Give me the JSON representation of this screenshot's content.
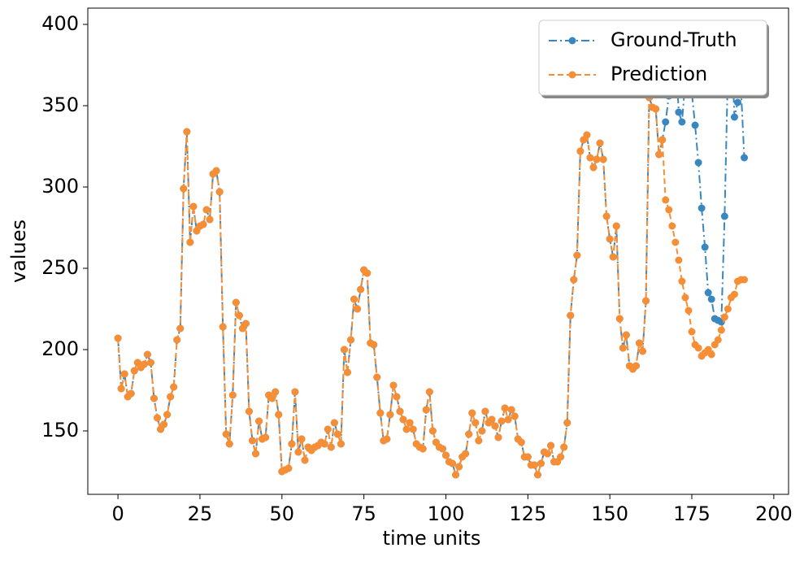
{
  "chart_data": {
    "type": "line",
    "xlabel": "time units",
    "ylabel": "values",
    "x": [
      0,
      1,
      2,
      3,
      4,
      5,
      6,
      7,
      8,
      9,
      10,
      11,
      12,
      13,
      14,
      15,
      16,
      17,
      18,
      19,
      20,
      21,
      22,
      23,
      24,
      25,
      26,
      27,
      28,
      29,
      30,
      31,
      32,
      33,
      34,
      35,
      36,
      37,
      38,
      39,
      40,
      41,
      42,
      43,
      44,
      45,
      46,
      47,
      48,
      49,
      50,
      51,
      52,
      53,
      54,
      55,
      56,
      57,
      58,
      59,
      60,
      61,
      62,
      63,
      64,
      65,
      66,
      67,
      68,
      69,
      70,
      71,
      72,
      73,
      74,
      75,
      76,
      77,
      78,
      79,
      80,
      81,
      82,
      83,
      84,
      85,
      86,
      87,
      88,
      89,
      90,
      91,
      92,
      93,
      94,
      95,
      96,
      97,
      98,
      99,
      100,
      101,
      102,
      103,
      104,
      105,
      106,
      107,
      108,
      109,
      110,
      111,
      112,
      113,
      114,
      115,
      116,
      117,
      118,
      119,
      120,
      121,
      122,
      123,
      124,
      125,
      126,
      127,
      128,
      129,
      130,
      131,
      132,
      133,
      134,
      135,
      136,
      137,
      138,
      139,
      140,
      141,
      142,
      143,
      144,
      145,
      146,
      147,
      148,
      149,
      150,
      151,
      152,
      153,
      154,
      155,
      156,
      157,
      158,
      159,
      160,
      161,
      162,
      163,
      164,
      165,
      166,
      167,
      168,
      169,
      170,
      171,
      172,
      173,
      174,
      175,
      176,
      177,
      178,
      179,
      180,
      181,
      182,
      183,
      184,
      185,
      186,
      187,
      188,
      189,
      190,
      191
    ],
    "series": [
      {
        "name": "Ground-Truth",
        "color": "#3a87c0",
        "style": "dashdot",
        "values": [
          207,
          176,
          185,
          171,
          173,
          187,
          192,
          189,
          191,
          197,
          192,
          170,
          158,
          151,
          154,
          160,
          171,
          177,
          206,
          213,
          299,
          334,
          266,
          288,
          273,
          276,
          277,
          286,
          280,
          308,
          310,
          297,
          214,
          148,
          142,
          172,
          229,
          221,
          213,
          216,
          162,
          144,
          136,
          156,
          145,
          146,
          172,
          170,
          174,
          160,
          125,
          126,
          127,
          142,
          174,
          137,
          145,
          132,
          140,
          138,
          140,
          141,
          143,
          142,
          151,
          140,
          155,
          148,
          142,
          200,
          186,
          206,
          231,
          225,
          237,
          249,
          247,
          204,
          203,
          183,
          161,
          144,
          145,
          160,
          178,
          171,
          162,
          157,
          151,
          155,
          151,
          142,
          140,
          139,
          163,
          174,
          150,
          143,
          140,
          139,
          135,
          131,
          130,
          123,
          128,
          134,
          136,
          148,
          161,
          155,
          144,
          150,
          162,
          155,
          157,
          153,
          146,
          156,
          164,
          157,
          163,
          159,
          145,
          143,
          134,
          134,
          129,
          129,
          123,
          130,
          137,
          136,
          141,
          131,
          131,
          134,
          140,
          155,
          221,
          243,
          258,
          322,
          329,
          332,
          318,
          312,
          317,
          327,
          317,
          282,
          268,
          257,
          276,
          219,
          201,
          209,
          190,
          188,
          190,
          204,
          199,
          230,
          355,
          349,
          348,
          320,
          329,
          340,
          356,
          372,
          385,
          346,
          340,
          365,
          380,
          358,
          338,
          315,
          287,
          263,
          235,
          231,
          219,
          218,
          217,
          282,
          372,
          395,
          343,
          352,
          360,
          318
        ]
      },
      {
        "name": "Prediction",
        "color": "#f58e35",
        "style": "dashed",
        "values": [
          207,
          176,
          185,
          171,
          173,
          187,
          192,
          189,
          191,
          197,
          192,
          170,
          158,
          151,
          154,
          160,
          171,
          177,
          206,
          213,
          299,
          334,
          266,
          288,
          273,
          276,
          277,
          286,
          280,
          308,
          310,
          297,
          214,
          148,
          142,
          172,
          229,
          221,
          213,
          216,
          162,
          144,
          136,
          156,
          145,
          146,
          172,
          170,
          174,
          160,
          125,
          126,
          127,
          142,
          174,
          137,
          145,
          132,
          140,
          138,
          140,
          141,
          143,
          142,
          151,
          140,
          155,
          148,
          142,
          200,
          186,
          206,
          231,
          225,
          237,
          249,
          247,
          204,
          203,
          183,
          161,
          144,
          145,
          160,
          178,
          171,
          162,
          157,
          151,
          155,
          151,
          142,
          140,
          139,
          163,
          174,
          150,
          143,
          140,
          139,
          135,
          131,
          130,
          123,
          128,
          134,
          136,
          148,
          161,
          155,
          144,
          150,
          162,
          155,
          157,
          153,
          146,
          156,
          164,
          157,
          163,
          159,
          145,
          143,
          134,
          134,
          129,
          129,
          123,
          130,
          137,
          136,
          141,
          131,
          131,
          134,
          140,
          155,
          221,
          243,
          258,
          322,
          329,
          332,
          318,
          312,
          317,
          327,
          317,
          282,
          268,
          257,
          276,
          219,
          201,
          209,
          190,
          188,
          190,
          204,
          199,
          230,
          355,
          349,
          348,
          320,
          329,
          292,
          286,
          276,
          266,
          255,
          242,
          232,
          224,
          211,
          203,
          201,
          196,
          198,
          200,
          197,
          203,
          206,
          212,
          220,
          225,
          232,
          234,
          242,
          243,
          243
        ]
      }
    ],
    "xlim": [
      -9.2,
      204.5
    ],
    "ylim": [
      111,
      410
    ],
    "xticks": [
      0,
      25,
      50,
      75,
      100,
      125,
      150,
      175,
      200
    ],
    "yticks": [
      150,
      200,
      250,
      300,
      350,
      400
    ],
    "grid": false,
    "legend": "upper right"
  }
}
